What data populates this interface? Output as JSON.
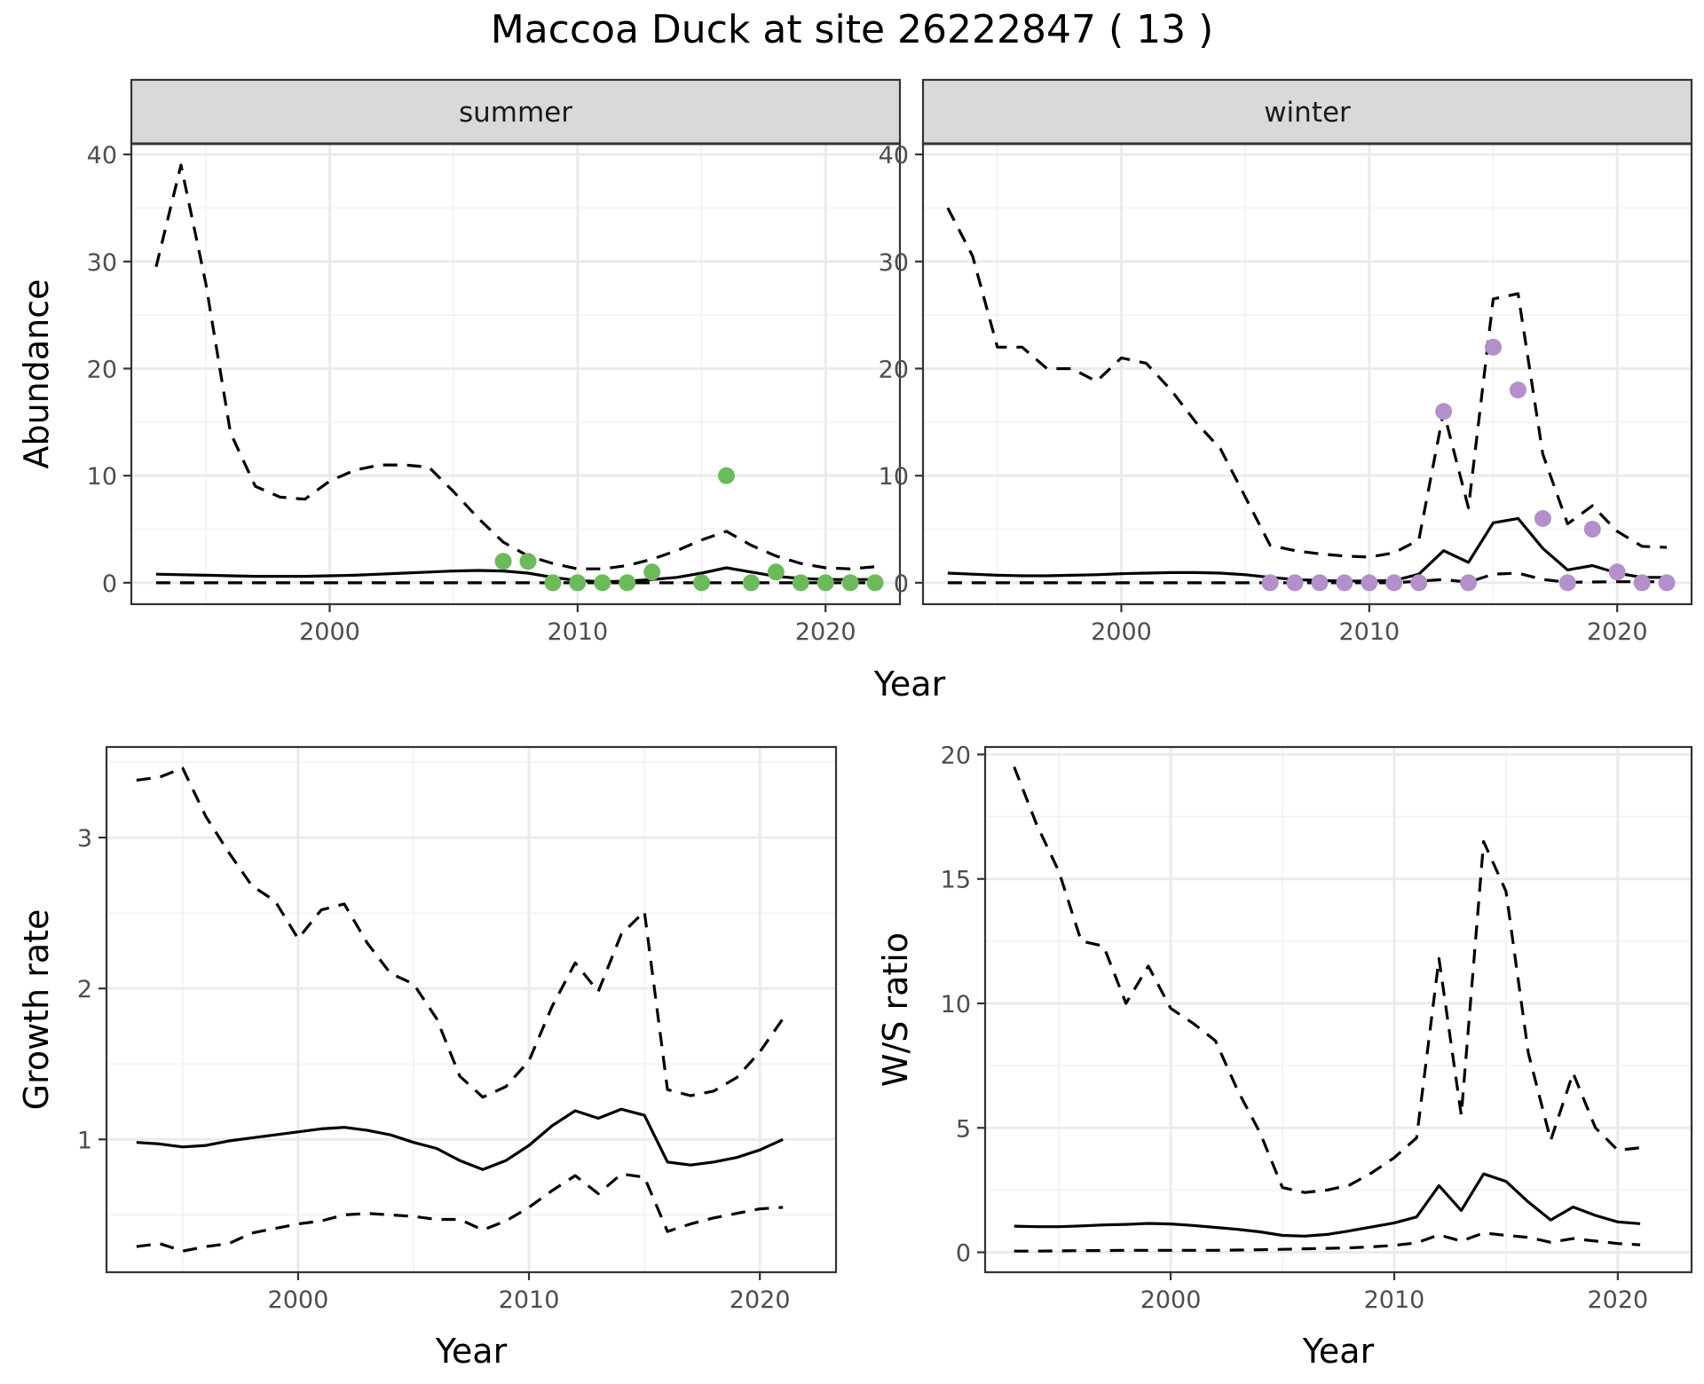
{
  "figure": {
    "title": "Maccoa Duck at site 26222847 ( 13 )",
    "abundance_xlabel": "Year"
  },
  "chart_data": [
    {
      "id": "abundance-summer",
      "type": "line",
      "strip_label": "summer",
      "xlabel": "",
      "ylabel": "Abundance",
      "xlim": [
        1992,
        2023
      ],
      "ylim": [
        -2,
        41
      ],
      "xticks": [
        2000,
        2010,
        2020
      ],
      "yticks": [
        0,
        10,
        20,
        30,
        40
      ],
      "grid": true,
      "point_color": "#6bbb5a",
      "estimate": {
        "x": [
          1993,
          1994,
          1995,
          1996,
          1997,
          1998,
          1999,
          2000,
          2001,
          2002,
          2003,
          2004,
          2005,
          2006,
          2007,
          2008,
          2009,
          2010,
          2011,
          2012,
          2013,
          2014,
          2015,
          2016,
          2017,
          2018,
          2019,
          2020,
          2021,
          2022
        ],
        "y": [
          0.8,
          0.75,
          0.7,
          0.65,
          0.6,
          0.6,
          0.6,
          0.65,
          0.7,
          0.8,
          0.9,
          1.0,
          1.1,
          1.15,
          1.1,
          0.9,
          0.5,
          0.2,
          0.1,
          0.15,
          0.3,
          0.5,
          0.9,
          1.4,
          1.0,
          0.6,
          0.4,
          0.3,
          0.3,
          0.3
        ]
      },
      "upper": {
        "x": [
          1993,
          1994,
          1995,
          1996,
          1997,
          1998,
          1999,
          2000,
          2001,
          2002,
          2003,
          2004,
          2005,
          2006,
          2007,
          2008,
          2009,
          2010,
          2011,
          2012,
          2013,
          2014,
          2015,
          2016,
          2017,
          2018,
          2019,
          2020,
          2021,
          2022
        ],
        "y": [
          29.5,
          39,
          28,
          14,
          9,
          8,
          7.8,
          9.5,
          10.5,
          11,
          11,
          10.8,
          8.5,
          6,
          3.8,
          2.5,
          1.8,
          1.3,
          1.3,
          1.6,
          2.2,
          3.0,
          4.0,
          4.8,
          3.5,
          2.5,
          1.8,
          1.4,
          1.3,
          1.5
        ]
      },
      "lower": {
        "x": [
          1993,
          2022
        ],
        "y": [
          0,
          0
        ]
      },
      "points": {
        "x": [
          2007,
          2008,
          2009,
          2010,
          2011,
          2012,
          2013,
          2015,
          2016,
          2017,
          2018,
          2019,
          2020,
          2021,
          2022
        ],
        "y": [
          2,
          2,
          0,
          0,
          0,
          0,
          1,
          0,
          10,
          0,
          1,
          0,
          0,
          0,
          0
        ]
      }
    },
    {
      "id": "abundance-winter",
      "type": "line",
      "strip_label": "winter",
      "xlabel": "",
      "ylabel": "",
      "xlim": [
        1992,
        2023
      ],
      "ylim": [
        -2,
        41
      ],
      "xticks": [
        2000,
        2010,
        2020
      ],
      "yticks": [
        0,
        10,
        20,
        30,
        40
      ],
      "grid": true,
      "point_color": "#b38fcb",
      "estimate": {
        "x": [
          1993,
          1994,
          1995,
          1996,
          1997,
          1998,
          1999,
          2000,
          2001,
          2002,
          2003,
          2004,
          2005,
          2006,
          2007,
          2008,
          2009,
          2010,
          2011,
          2012,
          2013,
          2014,
          2015,
          2016,
          2017,
          2018,
          2019,
          2020,
          2021,
          2022
        ],
        "y": [
          0.9,
          0.8,
          0.7,
          0.65,
          0.65,
          0.7,
          0.75,
          0.85,
          0.9,
          0.95,
          0.95,
          0.9,
          0.75,
          0.5,
          0.3,
          0.2,
          0.15,
          0.15,
          0.2,
          0.8,
          3.0,
          1.9,
          5.6,
          6.0,
          3.2,
          1.2,
          1.6,
          0.9,
          0.5,
          0.5
        ]
      },
      "upper": {
        "x": [
          1993,
          1994,
          1995,
          1996,
          1997,
          1998,
          1999,
          2000,
          2001,
          2002,
          2003,
          2004,
          2005,
          2006,
          2007,
          2008,
          2009,
          2010,
          2011,
          2012,
          2013,
          2014,
          2015,
          2016,
          2017,
          2018,
          2019,
          2020,
          2021,
          2022
        ],
        "y": [
          35,
          30.5,
          22,
          22,
          20,
          20,
          18.8,
          21,
          20.5,
          18,
          15,
          12.5,
          8,
          3.5,
          3.0,
          2.7,
          2.5,
          2.4,
          2.8,
          4.0,
          16,
          7.0,
          26.5,
          27,
          12,
          5.5,
          7.2,
          4.8,
          3.4,
          3.3
        ]
      },
      "lower": {
        "x": [
          1993,
          2008,
          2011,
          2013,
          2014,
          2015,
          2016,
          2017,
          2018,
          2020,
          2022
        ],
        "y": [
          0,
          0,
          0,
          0.3,
          0.05,
          0.8,
          0.9,
          0.3,
          0.05,
          0.1,
          0.1
        ]
      },
      "points": {
        "x": [
          2006,
          2007,
          2008,
          2009,
          2010,
          2011,
          2012,
          2013,
          2014,
          2015,
          2016,
          2017,
          2018,
          2019,
          2020,
          2021,
          2022
        ],
        "y": [
          0,
          0,
          0,
          0,
          0,
          0,
          0,
          16,
          0,
          22,
          18,
          6,
          0,
          5,
          1,
          0,
          0
        ]
      }
    },
    {
      "id": "growth-rate",
      "type": "line",
      "xlabel": "Year",
      "ylabel": "Growth rate",
      "xlim": [
        1991.7,
        2023.3
      ],
      "ylim": [
        0.12,
        3.6
      ],
      "xticks": [
        2000,
        2010,
        2020
      ],
      "yticks": [
        1,
        2,
        3
      ],
      "grid": true,
      "estimate": {
        "x": [
          1993,
          1994,
          1995,
          1996,
          1997,
          1998,
          1999,
          2000,
          2001,
          2002,
          2003,
          2004,
          2005,
          2006,
          2007,
          2008,
          2009,
          2010,
          2011,
          2012,
          2013,
          2014,
          2015,
          2016,
          2017,
          2018,
          2019,
          2020,
          2021
        ],
        "y": [
          0.98,
          0.97,
          0.95,
          0.96,
          0.99,
          1.01,
          1.03,
          1.05,
          1.07,
          1.08,
          1.06,
          1.03,
          0.98,
          0.94,
          0.86,
          0.8,
          0.86,
          0.96,
          1.09,
          1.19,
          1.14,
          1.2,
          1.16,
          0.85,
          0.83,
          0.85,
          0.88,
          0.93,
          1.0
        ]
      },
      "upper": {
        "x": [
          1993,
          1994,
          1995,
          1996,
          1997,
          1998,
          1999,
          2000,
          2001,
          2002,
          2003,
          2004,
          2005,
          2006,
          2007,
          2008,
          2009,
          2010,
          2011,
          2012,
          2013,
          2014,
          2015,
          2016,
          2017,
          2018,
          2019,
          2020,
          2021
        ],
        "y": [
          3.38,
          3.4,
          3.46,
          3.14,
          2.9,
          2.68,
          2.58,
          2.33,
          2.52,
          2.56,
          2.3,
          2.1,
          2.03,
          1.8,
          1.42,
          1.28,
          1.35,
          1.52,
          1.88,
          2.17,
          1.98,
          2.36,
          2.51,
          1.33,
          1.29,
          1.32,
          1.41,
          1.58,
          1.8
        ]
      },
      "lower": {
        "x": [
          1993,
          1994,
          1995,
          1996,
          1997,
          1998,
          1999,
          2000,
          2001,
          2002,
          2003,
          2004,
          2005,
          2006,
          2007,
          2008,
          2009,
          2010,
          2011,
          2012,
          2013,
          2014,
          2015,
          2016,
          2017,
          2018,
          2019,
          2020,
          2021
        ],
        "y": [
          0.29,
          0.31,
          0.26,
          0.29,
          0.31,
          0.38,
          0.41,
          0.44,
          0.46,
          0.5,
          0.51,
          0.5,
          0.49,
          0.47,
          0.47,
          0.4,
          0.46,
          0.55,
          0.66,
          0.76,
          0.64,
          0.77,
          0.75,
          0.39,
          0.44,
          0.48,
          0.51,
          0.54,
          0.55
        ]
      }
    },
    {
      "id": "ws-ratio",
      "type": "line",
      "xlabel": "Year",
      "ylabel": "W/S ratio",
      "xlim": [
        1991.7,
        2023.3
      ],
      "ylim": [
        -0.8,
        20.3
      ],
      "xticks": [
        2000,
        2010,
        2020
      ],
      "yticks": [
        0,
        5,
        10,
        15,
        20
      ],
      "grid": true,
      "estimate": {
        "x": [
          1993,
          1994,
          1995,
          1996,
          1997,
          1998,
          1999,
          2000,
          2001,
          2002,
          2003,
          2004,
          2005,
          2006,
          2007,
          2008,
          2009,
          2010,
          2011,
          2012,
          2013,
          2014,
          2015,
          2016,
          2017,
          2018,
          2019,
          2020,
          2021
        ],
        "y": [
          1.05,
          1.03,
          1.03,
          1.06,
          1.1,
          1.12,
          1.16,
          1.14,
          1.08,
          1.0,
          0.92,
          0.82,
          0.68,
          0.65,
          0.72,
          0.86,
          1.02,
          1.18,
          1.42,
          2.68,
          1.68,
          3.15,
          2.85,
          2.02,
          1.3,
          1.82,
          1.48,
          1.22,
          1.15
        ]
      },
      "upper": {
        "x": [
          1993,
          1994,
          1995,
          1996,
          1997,
          1998,
          1999,
          2000,
          2001,
          2002,
          2003,
          2004,
          2005,
          2006,
          2007,
          2008,
          2009,
          2010,
          2011,
          2012,
          2013,
          2014,
          2015,
          2016,
          2017,
          2018,
          2019,
          2020,
          2021
        ],
        "y": [
          19.5,
          17.2,
          15.3,
          12.5,
          12.3,
          10.0,
          11.5,
          9.8,
          9.2,
          8.5,
          6.5,
          4.8,
          2.6,
          2.4,
          2.5,
          2.7,
          3.2,
          3.8,
          4.6,
          11.8,
          5.5,
          16.5,
          14.5,
          8.0,
          4.5,
          7.2,
          5.0,
          4.1,
          4.2
        ]
      },
      "lower": {
        "x": [
          1993,
          1994,
          1995,
          1996,
          1997,
          1998,
          1999,
          2000,
          2001,
          2002,
          2003,
          2004,
          2005,
          2006,
          2007,
          2008,
          2009,
          2010,
          2011,
          2012,
          2013,
          2014,
          2015,
          2016,
          2017,
          2018,
          2019,
          2020,
          2021
        ],
        "y": [
          0.05,
          0.05,
          0.06,
          0.07,
          0.07,
          0.08,
          0.08,
          0.08,
          0.08,
          0.08,
          0.09,
          0.1,
          0.12,
          0.14,
          0.16,
          0.18,
          0.22,
          0.28,
          0.38,
          0.7,
          0.45,
          0.78,
          0.68,
          0.6,
          0.4,
          0.55,
          0.45,
          0.35,
          0.3
        ]
      }
    }
  ]
}
